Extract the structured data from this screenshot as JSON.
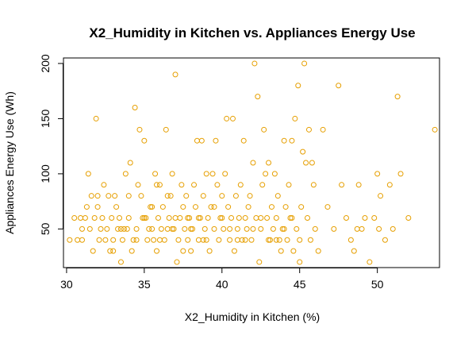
{
  "chart_data": {
    "type": "scatter",
    "title": "X2_Humidity in Kitchen vs. Appliances Energy Use",
    "xlabel": "X2_Humidity in Kitchen (%)",
    "ylabel": "Appliances Energy Use (Wh)",
    "xlim": [
      29.8,
      54.0
    ],
    "ylim": [
      15,
      205
    ],
    "xticks": [
      30,
      35,
      40,
      45,
      50
    ],
    "yticks": [
      50,
      100,
      150,
      200
    ],
    "point_color": "#E69F00",
    "points": [
      [
        30.2,
        40
      ],
      [
        30.5,
        60
      ],
      [
        30.7,
        40
      ],
      [
        30.9,
        60
      ],
      [
        31.0,
        40
      ],
      [
        31.2,
        60
      ],
      [
        31.3,
        70
      ],
      [
        31.4,
        100
      ],
      [
        31.5,
        50
      ],
      [
        31.6,
        80
      ],
      [
        31.7,
        30
      ],
      [
        31.8,
        60
      ],
      [
        31.9,
        150
      ],
      [
        32.0,
        80
      ],
      [
        32.1,
        40
      ],
      [
        32.2,
        50
      ],
      [
        32.3,
        60
      ],
      [
        32.4,
        90
      ],
      [
        32.5,
        40
      ],
      [
        32.6,
        50
      ],
      [
        32.7,
        80
      ],
      [
        32.8,
        30
      ],
      [
        32.9,
        60
      ],
      [
        33.0,
        40
      ],
      [
        33.1,
        80
      ],
      [
        33.2,
        70
      ],
      [
        33.3,
        50
      ],
      [
        33.4,
        60
      ],
      [
        33.5,
        20
      ],
      [
        33.6,
        40
      ],
      [
        33.7,
        50
      ],
      [
        33.8,
        100
      ],
      [
        33.9,
        50
      ],
      [
        34.0,
        60
      ],
      [
        34.1,
        110
      ],
      [
        34.2,
        30
      ],
      [
        34.3,
        40
      ],
      [
        34.4,
        160
      ],
      [
        34.5,
        50
      ],
      [
        34.6,
        90
      ],
      [
        34.7,
        140
      ],
      [
        34.8,
        80
      ],
      [
        34.9,
        60
      ],
      [
        35.0,
        130
      ],
      [
        35.1,
        60
      ],
      [
        35.2,
        40
      ],
      [
        35.3,
        50
      ],
      [
        35.4,
        70
      ],
      [
        35.5,
        50
      ],
      [
        35.6,
        40
      ],
      [
        35.7,
        100
      ],
      [
        35.8,
        30
      ],
      [
        35.9,
        60
      ],
      [
        36.0,
        90
      ],
      [
        36.1,
        50
      ],
      [
        36.2,
        70
      ],
      [
        36.3,
        40
      ],
      [
        36.4,
        140
      ],
      [
        36.5,
        50
      ],
      [
        36.6,
        60
      ],
      [
        36.7,
        80
      ],
      [
        36.8,
        100
      ],
      [
        36.9,
        50
      ],
      [
        37.0,
        190
      ],
      [
        37.1,
        20
      ],
      [
        37.2,
        40
      ],
      [
        37.3,
        60
      ],
      [
        37.4,
        90
      ],
      [
        37.5,
        30
      ],
      [
        37.6,
        50
      ],
      [
        37.7,
        80
      ],
      [
        37.8,
        40
      ],
      [
        37.9,
        60
      ],
      [
        38.0,
        30
      ],
      [
        38.1,
        50
      ],
      [
        38.2,
        90
      ],
      [
        38.3,
        70
      ],
      [
        38.4,
        130
      ],
      [
        38.5,
        40
      ],
      [
        38.6,
        60
      ],
      [
        38.7,
        130
      ],
      [
        38.8,
        80
      ],
      [
        38.9,
        50
      ],
      [
        39.0,
        100
      ],
      [
        39.1,
        60
      ],
      [
        39.2,
        30
      ],
      [
        39.3,
        70
      ],
      [
        39.4,
        100
      ],
      [
        39.5,
        50
      ],
      [
        39.6,
        130
      ],
      [
        39.7,
        90
      ],
      [
        39.8,
        40
      ],
      [
        39.9,
        60
      ],
      [
        40.0,
        80
      ],
      [
        40.1,
        50
      ],
      [
        40.2,
        100
      ],
      [
        40.3,
        150
      ],
      [
        40.4,
        70
      ],
      [
        40.5,
        40
      ],
      [
        40.6,
        60
      ],
      [
        40.7,
        150
      ],
      [
        40.8,
        30
      ],
      [
        40.9,
        80
      ],
      [
        41.0,
        50
      ],
      [
        41.1,
        60
      ],
      [
        41.2,
        90
      ],
      [
        41.3,
        40
      ],
      [
        41.4,
        130
      ],
      [
        41.5,
        60
      ],
      [
        41.6,
        50
      ],
      [
        41.7,
        70
      ],
      [
        41.8,
        80
      ],
      [
        41.9,
        40
      ],
      [
        42.0,
        110
      ],
      [
        42.1,
        200
      ],
      [
        42.2,
        60
      ],
      [
        42.3,
        170
      ],
      [
        42.4,
        20
      ],
      [
        42.5,
        50
      ],
      [
        42.6,
        90
      ],
      [
        42.7,
        140
      ],
      [
        42.8,
        100
      ],
      [
        42.9,
        60
      ],
      [
        43.0,
        110
      ],
      [
        43.1,
        40
      ],
      [
        43.2,
        70
      ],
      [
        43.3,
        50
      ],
      [
        43.4,
        100
      ],
      [
        43.5,
        60
      ],
      [
        43.6,
        80
      ],
      [
        43.7,
        40
      ],
      [
        43.8,
        30
      ],
      [
        43.9,
        50
      ],
      [
        44.0,
        130
      ],
      [
        44.1,
        70
      ],
      [
        44.2,
        40
      ],
      [
        44.3,
        90
      ],
      [
        44.4,
        60
      ],
      [
        44.5,
        130
      ],
      [
        44.6,
        30
      ],
      [
        44.7,
        150
      ],
      [
        44.8,
        50
      ],
      [
        44.9,
        180
      ],
      [
        45.0,
        20
      ],
      [
        45.1,
        70
      ],
      [
        45.2,
        120
      ],
      [
        45.3,
        200
      ],
      [
        45.4,
        110
      ],
      [
        45.5,
        60
      ],
      [
        45.6,
        140
      ],
      [
        45.7,
        40
      ],
      [
        45.8,
        110
      ],
      [
        45.9,
        90
      ],
      [
        46.0,
        50
      ],
      [
        46.2,
        30
      ],
      [
        46.5,
        140
      ],
      [
        46.8,
        70
      ],
      [
        47.2,
        50
      ],
      [
        47.5,
        180
      ],
      [
        47.7,
        90
      ],
      [
        48.0,
        60
      ],
      [
        48.3,
        40
      ],
      [
        48.5,
        30
      ],
      [
        48.7,
        50
      ],
      [
        48.8,
        90
      ],
      [
        49.0,
        50
      ],
      [
        49.2,
        60
      ],
      [
        49.5,
        20
      ],
      [
        49.8,
        60
      ],
      [
        50.0,
        100
      ],
      [
        50.1,
        50
      ],
      [
        50.2,
        80
      ],
      [
        50.5,
        40
      ],
      [
        50.8,
        90
      ],
      [
        51.0,
        50
      ],
      [
        51.3,
        170
      ],
      [
        51.5,
        100
      ],
      [
        52.0,
        60
      ],
      [
        53.7,
        140
      ],
      [
        35.0,
        60
      ],
      [
        36.0,
        40
      ],
      [
        37.0,
        60
      ],
      [
        38.0,
        50
      ],
      [
        39.0,
        40
      ],
      [
        40.0,
        60
      ],
      [
        41.0,
        40
      ],
      [
        42.0,
        50
      ],
      [
        43.0,
        40
      ],
      [
        44.0,
        50
      ],
      [
        45.0,
        40
      ],
      [
        33.0,
        30
      ],
      [
        34.0,
        80
      ],
      [
        35.5,
        70
      ],
      [
        36.5,
        80
      ],
      [
        37.5,
        70
      ],
      [
        38.5,
        60
      ],
      [
        39.5,
        70
      ],
      [
        40.5,
        50
      ],
      [
        41.5,
        40
      ],
      [
        42.5,
        60
      ],
      [
        43.5,
        40
      ],
      [
        44.5,
        60
      ],
      [
        31.0,
        50
      ],
      [
        32.0,
        70
      ],
      [
        33.5,
        50
      ],
      [
        34.5,
        40
      ],
      [
        35.8,
        90
      ],
      [
        36.8,
        50
      ],
      [
        37.8,
        60
      ],
      [
        38.8,
        40
      ]
    ]
  }
}
